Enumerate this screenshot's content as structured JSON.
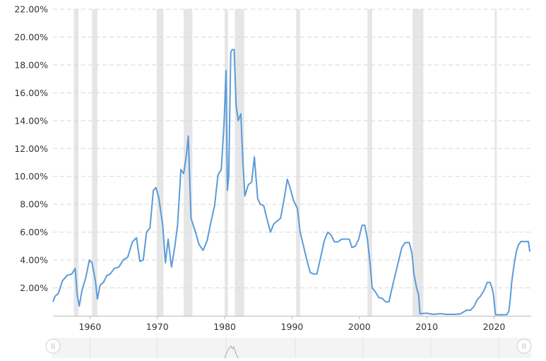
{
  "chart_data": {
    "type": "line",
    "title": "",
    "xlabel": "",
    "ylabel": "",
    "xlim": [
      1954.5,
      2023.0
    ],
    "ylim": [
      0,
      22
    ],
    "grid": true,
    "y_ticks": [
      "2.00%",
      "4.00%",
      "6.00%",
      "8.00%",
      "10.00%",
      "12.00%",
      "14.00%",
      "16.00%",
      "18.00%",
      "20.00%",
      "22.00%"
    ],
    "x_ticks": [
      "1960",
      "1970",
      "1980",
      "1990",
      "2000",
      "2010",
      "2020"
    ],
    "recessions": [
      [
        1957.6,
        1958.3
      ],
      [
        1960.3,
        1961.1
      ],
      [
        1969.9,
        1970.9
      ],
      [
        1973.9,
        1975.2
      ],
      [
        1980.0,
        1980.5
      ],
      [
        1981.5,
        1982.9
      ],
      [
        1990.6,
        1991.2
      ],
      [
        2001.2,
        2001.9
      ],
      [
        2007.9,
        2009.5
      ],
      [
        2020.1,
        2020.4
      ]
    ],
    "series": [
      {
        "points": [
          [
            1954.5,
            1.0
          ],
          [
            1954.8,
            1.4
          ],
          [
            1955.3,
            1.6
          ],
          [
            1955.9,
            2.5
          ],
          [
            1956.6,
            2.9
          ],
          [
            1957.3,
            3.0
          ],
          [
            1957.8,
            3.4
          ],
          [
            1958.1,
            1.5
          ],
          [
            1958.4,
            0.7
          ],
          [
            1958.8,
            1.8
          ],
          [
            1959.4,
            2.8
          ],
          [
            1959.9,
            4.0
          ],
          [
            1960.3,
            3.8
          ],
          [
            1960.8,
            2.5
          ],
          [
            1961.1,
            1.2
          ],
          [
            1961.5,
            2.2
          ],
          [
            1962.0,
            2.4
          ],
          [
            1962.5,
            2.9
          ],
          [
            1963.0,
            3.0
          ],
          [
            1963.6,
            3.4
          ],
          [
            1964.3,
            3.5
          ],
          [
            1964.9,
            4.0
          ],
          [
            1965.6,
            4.2
          ],
          [
            1966.3,
            5.3
          ],
          [
            1966.9,
            5.6
          ],
          [
            1967.4,
            3.9
          ],
          [
            1967.9,
            4.0
          ],
          [
            1968.4,
            6.0
          ],
          [
            1968.9,
            6.3
          ],
          [
            1969.4,
            9.0
          ],
          [
            1969.8,
            9.2
          ],
          [
            1970.2,
            8.5
          ],
          [
            1970.8,
            6.5
          ],
          [
            1971.2,
            3.8
          ],
          [
            1971.6,
            5.5
          ],
          [
            1972.1,
            3.5
          ],
          [
            1972.6,
            5.0
          ],
          [
            1973.0,
            6.5
          ],
          [
            1973.5,
            10.5
          ],
          [
            1973.9,
            10.2
          ],
          [
            1974.3,
            11.5
          ],
          [
            1974.6,
            12.9
          ],
          [
            1975.0,
            7.0
          ],
          [
            1975.6,
            6.1
          ],
          [
            1976.2,
            5.1
          ],
          [
            1976.8,
            4.7
          ],
          [
            1977.4,
            5.4
          ],
          [
            1977.9,
            6.6
          ],
          [
            1978.5,
            7.9
          ],
          [
            1979.0,
            10.1
          ],
          [
            1979.5,
            10.5
          ],
          [
            1979.9,
            13.8
          ],
          [
            1980.2,
            17.6
          ],
          [
            1980.4,
            9.0
          ],
          [
            1980.6,
            10.0
          ],
          [
            1980.9,
            18.9
          ],
          [
            1981.1,
            19.1
          ],
          [
            1981.4,
            19.1
          ],
          [
            1981.7,
            15.1
          ],
          [
            1982.0,
            14.0
          ],
          [
            1982.4,
            14.5
          ],
          [
            1982.7,
            11.0
          ],
          [
            1983.0,
            8.6
          ],
          [
            1983.5,
            9.4
          ],
          [
            1984.0,
            9.6
          ],
          [
            1984.4,
            11.4
          ],
          [
            1984.9,
            8.4
          ],
          [
            1985.3,
            8.0
          ],
          [
            1985.8,
            7.9
          ],
          [
            1986.3,
            6.9
          ],
          [
            1986.8,
            6.0
          ],
          [
            1987.3,
            6.6
          ],
          [
            1987.8,
            6.8
          ],
          [
            1988.3,
            7.0
          ],
          [
            1988.8,
            8.3
          ],
          [
            1989.3,
            9.8
          ],
          [
            1989.7,
            9.2
          ],
          [
            1990.2,
            8.3
          ],
          [
            1990.8,
            7.7
          ],
          [
            1991.2,
            6.0
          ],
          [
            1991.7,
            5.0
          ],
          [
            1992.2,
            4.0
          ],
          [
            1992.7,
            3.1
          ],
          [
            1993.2,
            3.0
          ],
          [
            1993.7,
            3.0
          ],
          [
            1994.3,
            4.3
          ],
          [
            1994.8,
            5.4
          ],
          [
            1995.3,
            6.0
          ],
          [
            1995.8,
            5.8
          ],
          [
            1996.3,
            5.3
          ],
          [
            1996.8,
            5.3
          ],
          [
            1997.4,
            5.5
          ],
          [
            1997.9,
            5.5
          ],
          [
            1998.5,
            5.5
          ],
          [
            1998.9,
            4.9
          ],
          [
            1999.4,
            5.0
          ],
          [
            1999.9,
            5.5
          ],
          [
            2000.4,
            6.5
          ],
          [
            2000.8,
            6.5
          ],
          [
            2001.2,
            5.5
          ],
          [
            2001.6,
            3.7
          ],
          [
            2001.9,
            2.0
          ],
          [
            2002.4,
            1.7
          ],
          [
            2002.9,
            1.3
          ],
          [
            2003.4,
            1.25
          ],
          [
            2003.9,
            1.0
          ],
          [
            2004.4,
            1.0
          ],
          [
            2004.8,
            1.9
          ],
          [
            2005.3,
            2.9
          ],
          [
            2005.8,
            3.9
          ],
          [
            2006.3,
            4.9
          ],
          [
            2006.8,
            5.25
          ],
          [
            2007.4,
            5.25
          ],
          [
            2007.8,
            4.5
          ],
          [
            2008.1,
            3.0
          ],
          [
            2008.5,
            2.0
          ],
          [
            2008.8,
            1.5
          ],
          [
            2009.0,
            0.15
          ],
          [
            2010.0,
            0.18
          ],
          [
            2011.0,
            0.1
          ],
          [
            2012.0,
            0.15
          ],
          [
            2013.0,
            0.1
          ],
          [
            2014.0,
            0.1
          ],
          [
            2015.0,
            0.13
          ],
          [
            2015.9,
            0.4
          ],
          [
            2016.5,
            0.4
          ],
          [
            2017.0,
            0.66
          ],
          [
            2017.5,
            1.15
          ],
          [
            2018.0,
            1.42
          ],
          [
            2018.5,
            1.82
          ],
          [
            2019.0,
            2.4
          ],
          [
            2019.4,
            2.4
          ],
          [
            2019.7,
            2.0
          ],
          [
            2019.9,
            1.55
          ],
          [
            2020.2,
            0.08
          ],
          [
            2021.0,
            0.07
          ],
          [
            2021.9,
            0.08
          ],
          [
            2022.2,
            0.33
          ],
          [
            2022.4,
            1.21
          ],
          [
            2022.6,
            2.33
          ],
          [
            2022.8,
            3.08
          ],
          [
            2023.0,
            3.78
          ],
          [
            2023.3,
            4.57
          ],
          [
            2023.6,
            5.08
          ],
          [
            2024.0,
            5.33
          ],
          [
            2025.1,
            5.33
          ],
          [
            2025.3,
            4.6
          ]
        ]
      }
    ]
  }
}
